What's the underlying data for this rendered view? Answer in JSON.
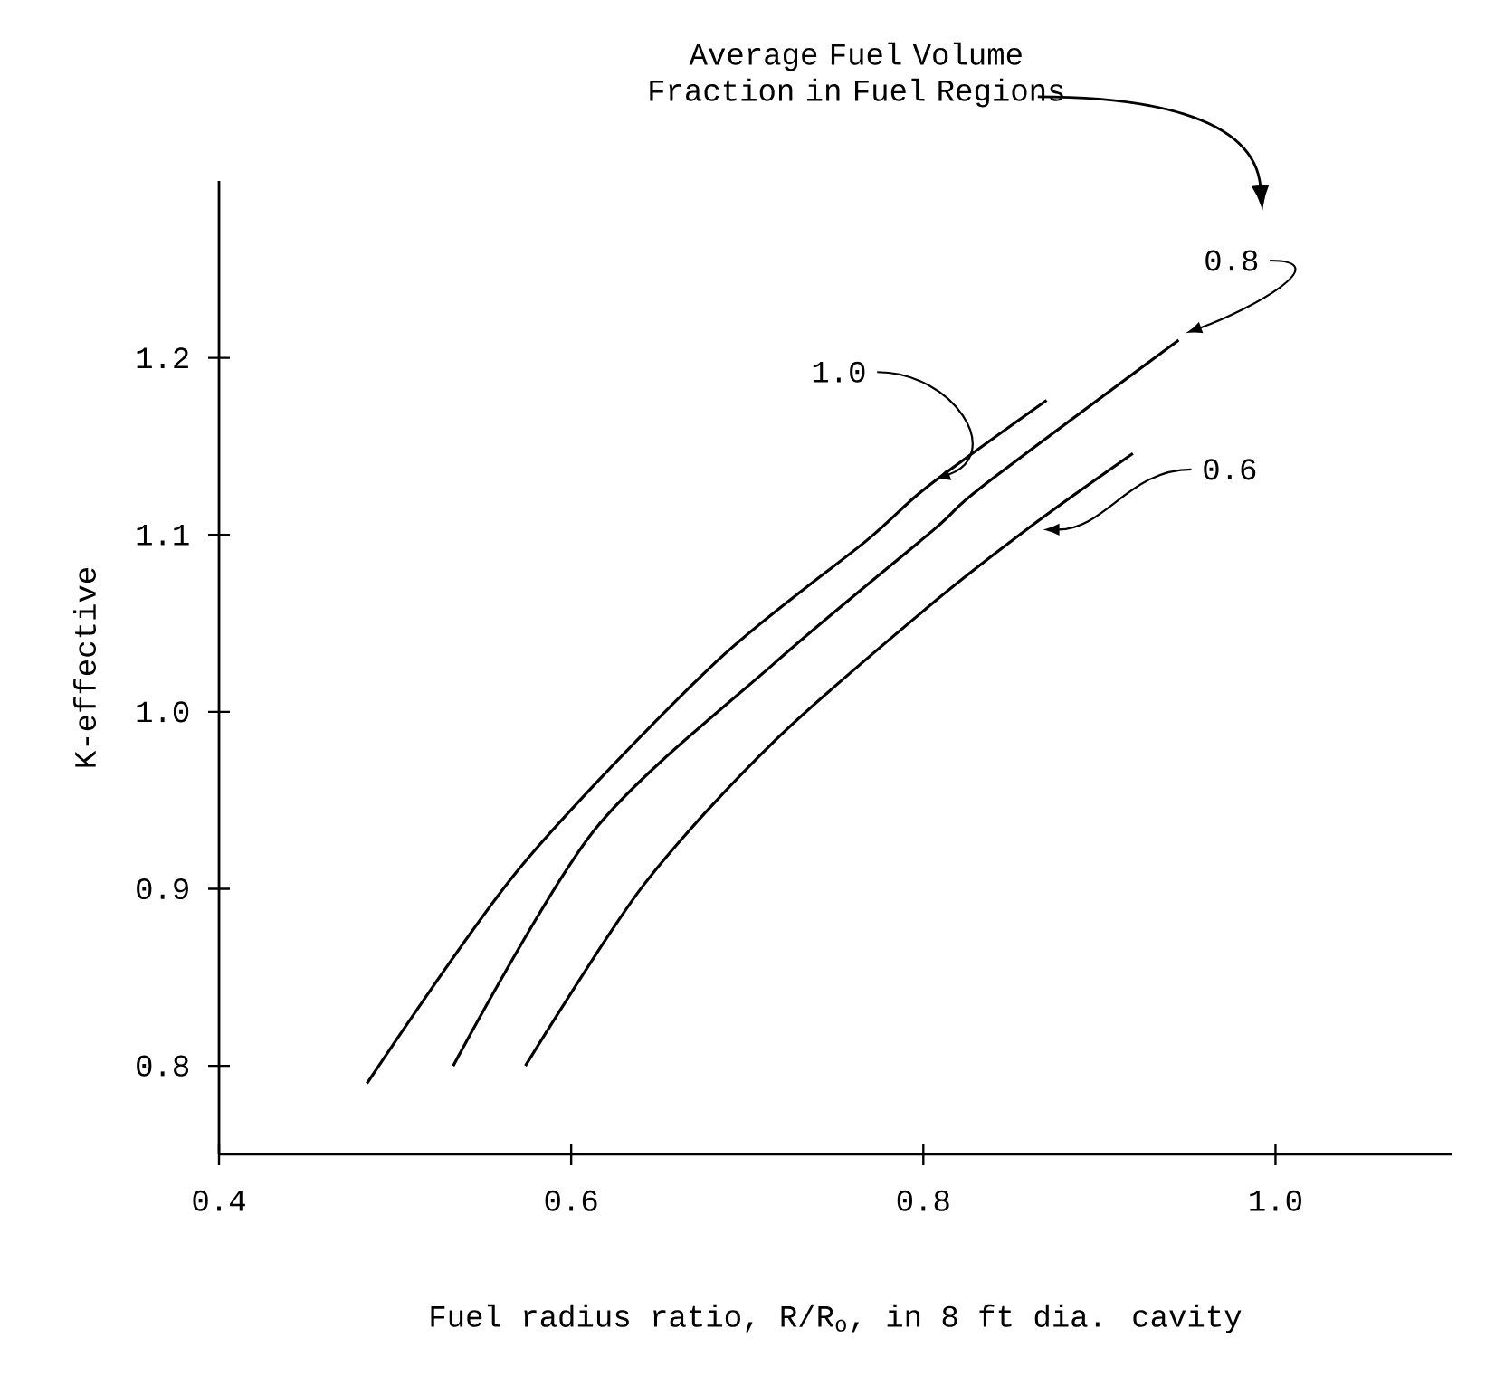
{
  "chart_data": {
    "type": "line",
    "legend_title": "Average Fuel Volume Fraction in Fuel Regions",
    "xlabel": "Fuel radius ratio, R/R$_{o}$, in 8 ft dia. cavity",
    "ylabel": "K-effective",
    "xlim": [
      0.4,
      1.1
    ],
    "ylim": [
      0.75,
      1.3
    ],
    "xticks": [
      0.4,
      0.6,
      0.8,
      {
        "value": 1.0,
        "label": "1.0"
      }
    ],
    "yticks": [
      0.8,
      0.9,
      {
        "value": 1.0,
        "label": "1.0"
      },
      1.1,
      1.2
    ],
    "marker": "none",
    "line_style": "solid",
    "grid": false,
    "series": [
      {
        "name": "1.0",
        "color": "#000000",
        "x": [
          0.484,
          0.571,
          0.682,
          0.768,
          0.802,
          0.87
        ],
        "values": [
          0.79,
          0.912,
          1.028,
          1.097,
          1.127,
          1.176
        ]
      },
      {
        "name": "0.8",
        "color": "#000000",
        "x": [
          0.533,
          0.613,
          0.716,
          0.806,
          0.833,
          0.945
        ],
        "values": [
          0.8,
          0.933,
          1.028,
          1.103,
          1.127,
          1.21
        ]
      },
      {
        "name": "0.6",
        "color": "#000000",
        "x": [
          0.574,
          0.641,
          0.716,
          0.806,
          0.864,
          0.919
        ],
        "values": [
          0.8,
          0.902,
          0.984,
          1.062,
          1.107,
          1.146
        ]
      }
    ]
  }
}
